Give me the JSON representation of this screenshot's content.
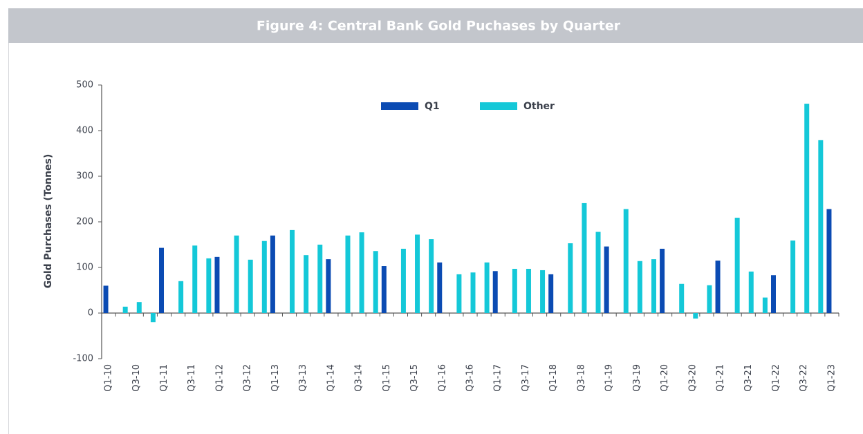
{
  "chart_data": {
    "type": "bar",
    "title": "Figure 4: Central Bank Gold Puchases by Quarter",
    "y_label": "Gold Purchases (Tonnes)",
    "categories": [
      "Q1-10",
      null,
      "Q3-10",
      null,
      "Q1-11",
      null,
      "Q3-11",
      null,
      "Q1-12",
      null,
      "Q3-12",
      null,
      "Q1-13",
      null,
      "Q3-13",
      null,
      "Q1-14",
      null,
      "Q3-14",
      null,
      "Q1-15",
      null,
      "Q3-15",
      null,
      "Q1-16",
      null,
      "Q3-16",
      null,
      "Q1-17",
      null,
      "Q3-17",
      null,
      "Q1-18",
      null,
      "Q3-18",
      null,
      "Q1-19",
      null,
      "Q3-19",
      null,
      "Q1-20",
      null,
      "Q3-20",
      null,
      "Q1-21",
      null,
      "Q3-21",
      null,
      "Q1-22",
      null,
      "Q3-22",
      null,
      "Q1-23"
    ],
    "series": [
      {
        "name": "Q1",
        "color": "#0b4bb3",
        "values": [
          60,
          null,
          null,
          null,
          143,
          null,
          null,
          null,
          123,
          null,
          null,
          null,
          170,
          null,
          null,
          null,
          118,
          null,
          null,
          null,
          103,
          null,
          null,
          null,
          111,
          null,
          null,
          null,
          92,
          null,
          null,
          null,
          85,
          null,
          null,
          null,
          146,
          null,
          null,
          null,
          141,
          null,
          null,
          null,
          115,
          null,
          null,
          null,
          83,
          null,
          null,
          null,
          228
        ]
      },
      {
        "name": "Other",
        "color": "#14c8d8",
        "values": [
          null,
          14,
          24,
          -20,
          null,
          70,
          148,
          120,
          null,
          170,
          117,
          158,
          null,
          182,
          127,
          150,
          null,
          170,
          177,
          136,
          null,
          141,
          172,
          162,
          null,
          85,
          89,
          111,
          null,
          97,
          97,
          94,
          null,
          153,
          241,
          178,
          null,
          228,
          114,
          118,
          null,
          64,
          -12,
          61,
          null,
          209,
          91,
          34,
          null,
          159,
          459,
          379,
          null
        ]
      }
    ],
    "ylim": [
      -100,
      500
    ],
    "yticks": [
      -100,
      0,
      100,
      200,
      300,
      400,
      500
    ],
    "grid": false,
    "legend": "top"
  }
}
